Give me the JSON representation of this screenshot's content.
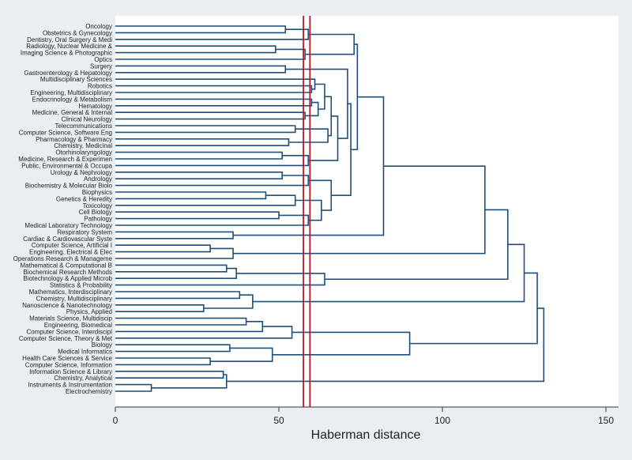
{
  "chart_data": {
    "type": "dendrogram",
    "orientation": "horizontal",
    "xlabel": "Haberman distance",
    "xlim": [
      0,
      150
    ],
    "xticks": [
      0,
      50,
      100,
      150
    ],
    "cut_lines": [
      57.5,
      59.5
    ],
    "colors": {
      "background": "#e9eef3",
      "plot_background": "#ffffff",
      "links": "#1f4e79",
      "cut_lines": "#b01c2e",
      "axis": "#333333"
    },
    "leaves": [
      "Oncology",
      "Obstetrics & Gynecology",
      "Dentistry, Oral Surgery & Medi",
      "Radiology, Nuclear Medicine &",
      "Imaging Science & Photographic",
      "Optics",
      "Surgery",
      "Gastroenterology & Hepatology",
      "Multidisciplinary Sciences",
      "Robotics",
      "Engineering, Multidisciplinary",
      "Endocrinology & Metabolism",
      "Hematology",
      "Medicine, General & Internal",
      "Clinical Neurology",
      "Telecommunications",
      "Computer Science, Software Eng",
      "Pharmacology & Pharmacy",
      "Chemistry, Medicinal",
      "Otorhinolaryngology",
      "Medicine, Research & Experimen",
      "Public, Environmental & Occupa",
      "Urology & Nephrology",
      "Andrology",
      "Biochemistry & Molecular Biolo",
      "Biophysics",
      "Genetics & Heredity",
      "Toxicology",
      "Cell Biology",
      "Pathology",
      "Medical Laboratory Technology",
      "Respiratory System",
      "Cardiac & Cardiovascular Syste",
      "Computer Science, Artificial I",
      "Engineering, Electrical & Elec",
      "Operations Research & Manageme",
      "Mathematical & Computational B",
      "Biochemical Research Methods",
      "Biotechnology & Applied Microb",
      "Statistics & Probability",
      "Mathematics, Interdisciplinary",
      "Chemistry, Multidisciplinary",
      "Nanoscience & Nanotechnology",
      "Physics, Applied",
      "Materials Science, Multidiscip",
      "Engineering, Biomedical",
      "Computer Science, Interdiscipl",
      "Computer Science, Theory & Met",
      "Biology",
      "Medical Informatics",
      "Health Care Sciences & Service",
      "Computer Science, Information",
      "Information Science & Library",
      "Chemistry, Analytical",
      "Instruments & Instrumentation",
      "Electrochemistry"
    ],
    "merges": [
      {
        "id": "n1",
        "a": 0,
        "b": 1,
        "h": 52
      },
      {
        "id": "n2",
        "a": "n1",
        "b": 2,
        "h": 59
      },
      {
        "id": "n3",
        "a": 3,
        "b": 4,
        "h": 49
      },
      {
        "id": "n4",
        "a": "n3",
        "b": 5,
        "h": 58
      },
      {
        "id": "n5",
        "a": "n2",
        "b": "n4",
        "h": 73
      },
      {
        "id": "n6",
        "a": 6,
        "b": 7,
        "h": 52
      },
      {
        "id": "n7",
        "a": 9,
        "b": 10,
        "h": 60
      },
      {
        "id": "n8",
        "a": 8,
        "b": "n7",
        "h": 61
      },
      {
        "id": "n9",
        "a": 11,
        "b": 12,
        "h": 60
      },
      {
        "id": "n10",
        "a": 13,
        "b": 14,
        "h": 58
      },
      {
        "id": "n11",
        "a": "n9",
        "b": "n10",
        "h": 62
      },
      {
        "id": "n12",
        "a": "n8",
        "b": "n11",
        "h": 64
      },
      {
        "id": "n13",
        "a": 15,
        "b": 16,
        "h": 55
      },
      {
        "id": "n14",
        "a": 17,
        "b": 18,
        "h": 53
      },
      {
        "id": "n15",
        "a": "n13",
        "b": "n14",
        "h": 65
      },
      {
        "id": "n16",
        "a": "n12",
        "b": "n15",
        "h": 66
      },
      {
        "id": "n17",
        "a": 19,
        "b": 20,
        "h": 51
      },
      {
        "id": "n18",
        "a": "n17",
        "b": 21,
        "h": 59
      },
      {
        "id": "n19",
        "a": "n16",
        "b": "n18",
        "h": 68
      },
      {
        "id": "n20",
        "a": "n6",
        "b": "n19",
        "h": 71
      },
      {
        "id": "n21",
        "a": 22,
        "b": 23,
        "h": 51
      },
      {
        "id": "n22",
        "a": "n21",
        "b": 24,
        "h": 59
      },
      {
        "id": "n23",
        "a": 25,
        "b": 26,
        "h": 46
      },
      {
        "id": "n24",
        "a": "n23",
        "b": 27,
        "h": 55
      },
      {
        "id": "n25",
        "a": 28,
        "b": 29,
        "h": 50
      },
      {
        "id": "n26",
        "a": "n25",
        "b": 30,
        "h": 59
      },
      {
        "id": "n27",
        "a": "n24",
        "b": "n26",
        "h": 63
      },
      {
        "id": "n28",
        "a": "n22",
        "b": "n27",
        "h": 66
      },
      {
        "id": "n29",
        "a": "n20",
        "b": "n28",
        "h": 72
      },
      {
        "id": "n30",
        "a": "n5",
        "b": "n29",
        "h": 74
      },
      {
        "id": "n31",
        "a": 31,
        "b": 32,
        "h": 36
      },
      {
        "id": "n32",
        "a": "n30",
        "b": "n31",
        "h": 82
      },
      {
        "id": "n33",
        "a": 33,
        "b": 34,
        "h": 29
      },
      {
        "id": "n34",
        "a": "n33",
        "b": 35,
        "h": 36
      },
      {
        "id": "n35",
        "a": 36,
        "b": 37,
        "h": 34
      },
      {
        "id": "n36",
        "a": "n35",
        "b": 38,
        "h": 37
      },
      {
        "id": "n37",
        "a": "n36",
        "b": 39,
        "h": 64
      },
      {
        "id": "n38",
        "a": 40,
        "b": 41,
        "h": 38
      },
      {
        "id": "n39",
        "a": 42,
        "b": 43,
        "h": 27
      },
      {
        "id": "n40",
        "a": "n38",
        "b": "n39",
        "h": 42
      },
      {
        "id": "n41",
        "a": 44,
        "b": 45,
        "h": 40
      },
      {
        "id": "n42",
        "a": "n41",
        "b": 46,
        "h": 45
      },
      {
        "id": "n43",
        "a": "n42",
        "b": 47,
        "h": 54
      },
      {
        "id": "n44",
        "a": 48,
        "b": 49,
        "h": 35
      },
      {
        "id": "n45",
        "a": 50,
        "b": 51,
        "h": 29
      },
      {
        "id": "n46",
        "a": "n44",
        "b": "n45",
        "h": 48
      },
      {
        "id": "n47",
        "a": "n43",
        "b": "n46",
        "h": 90
      },
      {
        "id": "n48",
        "a": 52,
        "b": 53,
        "h": 33
      },
      {
        "id": "n49",
        "a": 54,
        "b": 55,
        "h": 11
      },
      {
        "id": "n50",
        "a": "n48",
        "b": "n49",
        "h": 34
      },
      {
        "id": "n51",
        "a": "n32",
        "b": "n34",
        "h": 113
      },
      {
        "id": "n52",
        "a": "n51",
        "b": "n37",
        "h": 120
      },
      {
        "id": "n53",
        "a": "n52",
        "b": "n40",
        "h": 125
      },
      {
        "id": "n54",
        "a": "n53",
        "b": "n47",
        "h": 129
      },
      {
        "id": "n55",
        "a": "n54",
        "b": "n50",
        "h": 131
      }
    ]
  }
}
